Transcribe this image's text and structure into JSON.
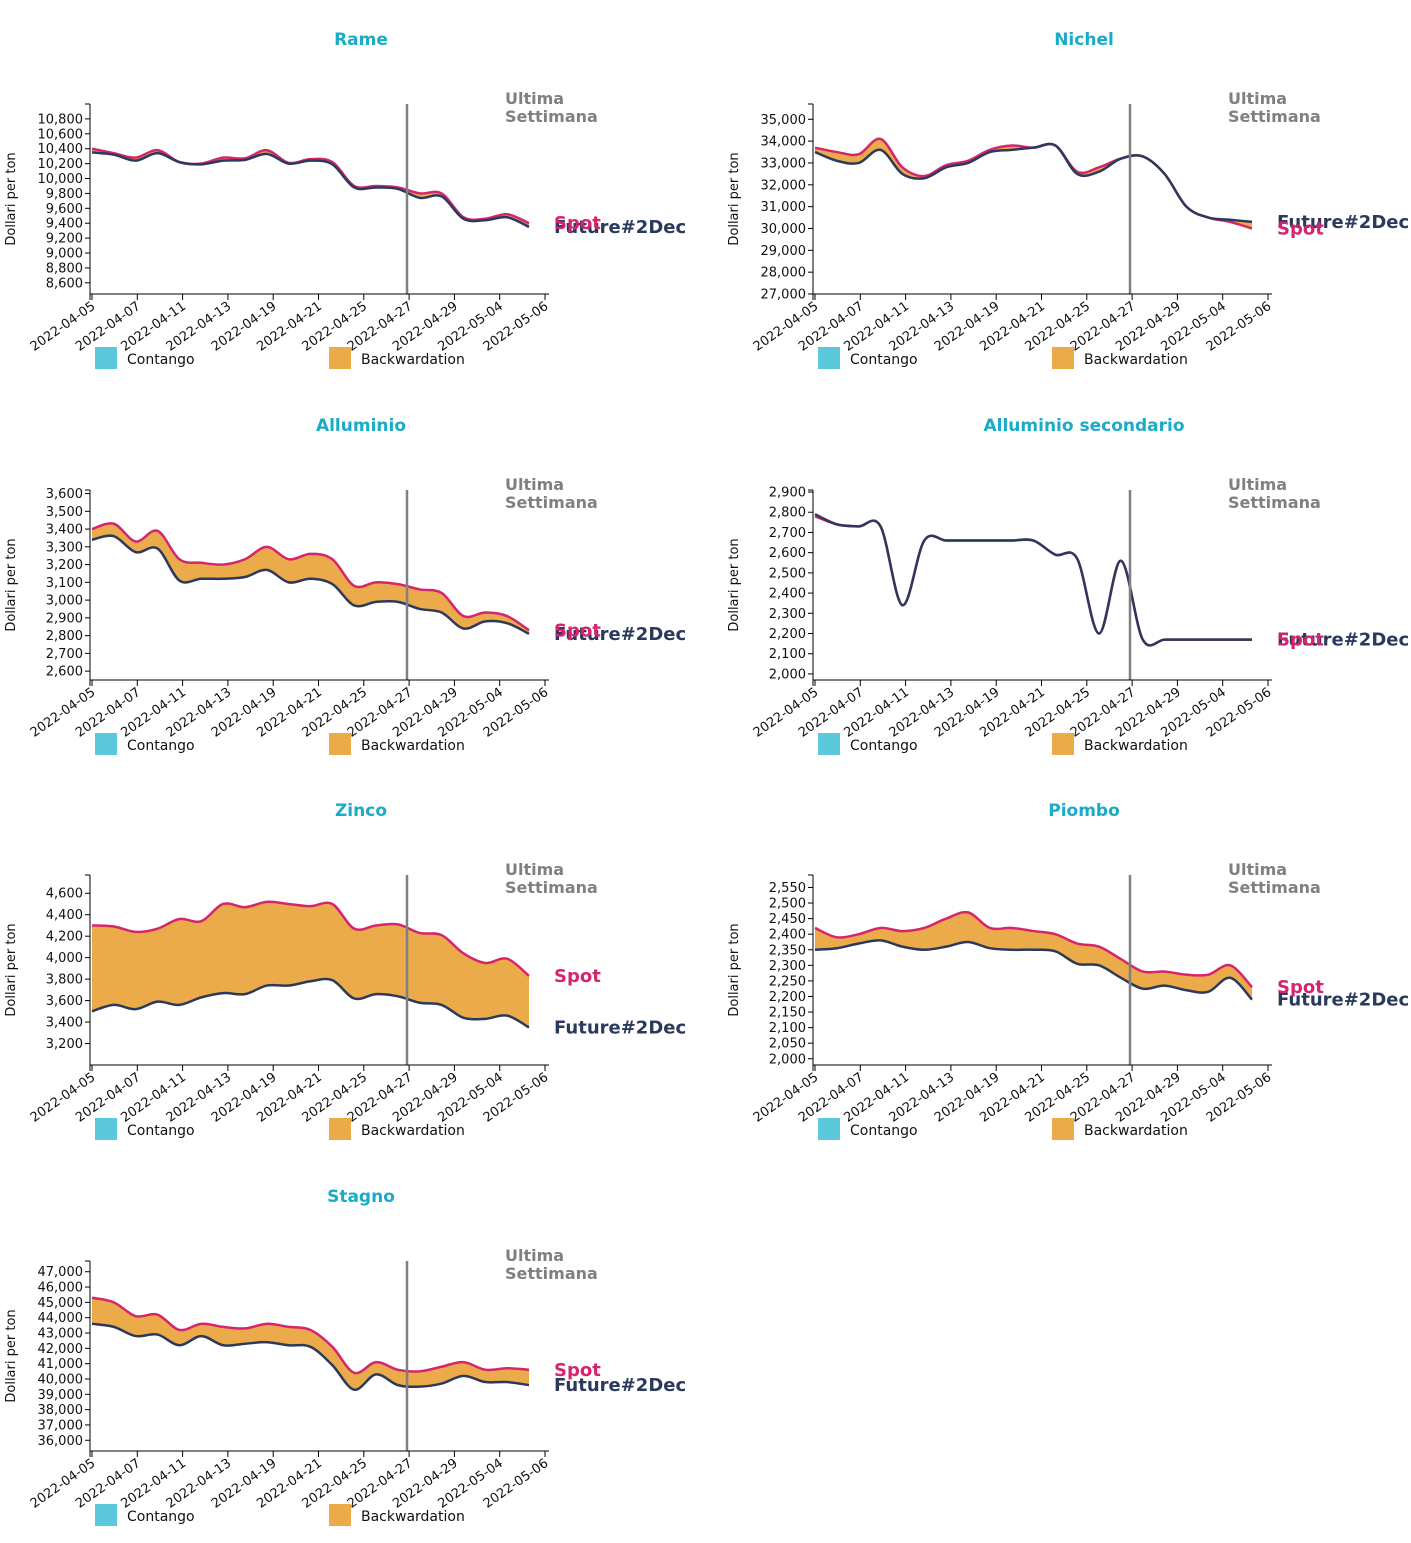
{
  "colors": {
    "title": "#1aabc7",
    "spot": "#d6246e",
    "future": "#2b3a5c",
    "contango": "#5bc8dc",
    "backwardation": "#ebab4a",
    "marker": "#808080"
  },
  "common": {
    "ylabel": "Dollari per ton",
    "annotation_line1": "Ultima",
    "annotation_line2": "Settimana",
    "marker_date": "2022-04-27",
    "spot_label": "Spot",
    "future_label": "Future#2Dec",
    "legend": [
      "Contango",
      "Backwardation"
    ],
    "x_ticks": [
      "2022-04-05",
      "2022-04-07",
      "2022-04-11",
      "2022-04-13",
      "2022-04-19",
      "2022-04-21",
      "2022-04-25",
      "2022-04-27",
      "2022-04-29",
      "2022-05-04",
      "2022-05-06"
    ]
  },
  "chart_data": [
    {
      "type": "area",
      "title": "Rame",
      "ylim": [
        8450,
        11000
      ],
      "y_ticks": [
        8600,
        8800,
        9000,
        9200,
        9400,
        9600,
        9800,
        10000,
        10200,
        10400,
        10600,
        10800
      ],
      "spot": [
        10400,
        10340,
        10280,
        10380,
        10220,
        10200,
        10280,
        10270,
        10380,
        10210,
        10260,
        10220,
        9900,
        9900,
        9880,
        9800,
        9800,
        9480,
        9460,
        9520,
        9400
      ],
      "future": [
        10350,
        10320,
        10240,
        10340,
        10220,
        10190,
        10240,
        10250,
        10330,
        10200,
        10240,
        10190,
        9880,
        9880,
        9860,
        9740,
        9760,
        9460,
        9440,
        9480,
        9350
      ]
    },
    {
      "type": "area",
      "title": "Nichel",
      "ylim": [
        27000,
        35700
      ],
      "y_ticks": [
        27000,
        28000,
        29000,
        30000,
        31000,
        32000,
        33000,
        34000,
        35000
      ],
      "spot": [
        33700,
        33500,
        33400,
        34100,
        32800,
        32400,
        32900,
        33100,
        33600,
        33800,
        33700,
        33800,
        32600,
        32800,
        33200,
        33300,
        32500,
        31000,
        30500,
        30300,
        30000
      ],
      "future": [
        33500,
        33100,
        33000,
        33600,
        32500,
        32300,
        32800,
        33000,
        33500,
        33600,
        33700,
        33800,
        32500,
        32600,
        33200,
        33300,
        32500,
        31000,
        30500,
        30400,
        30300
      ]
    },
    {
      "type": "area",
      "title": "Alluminio",
      "ylim": [
        2550,
        3620
      ],
      "y_ticks": [
        2600,
        2700,
        2800,
        2900,
        3000,
        3100,
        3200,
        3300,
        3400,
        3500,
        3600
      ],
      "spot": [
        3400,
        3430,
        3330,
        3390,
        3230,
        3210,
        3200,
        3230,
        3300,
        3230,
        3260,
        3230,
        3080,
        3100,
        3090,
        3060,
        3040,
        2910,
        2930,
        2910,
        2830
      ],
      "future": [
        3340,
        3360,
        3270,
        3290,
        3110,
        3120,
        3120,
        3130,
        3170,
        3100,
        3120,
        3090,
        2970,
        2990,
        2990,
        2950,
        2930,
        2840,
        2880,
        2870,
        2810
      ]
    },
    {
      "type": "area",
      "title": "Alluminio secondario",
      "ylim": [
        1970,
        2910
      ],
      "y_ticks": [
        2000,
        2100,
        2200,
        2300,
        2400,
        2500,
        2600,
        2700,
        2800,
        2900
      ],
      "spot": [
        2780,
        2740,
        2730,
        2730,
        2340,
        2660,
        2660,
        2660,
        2660,
        2660,
        2660,
        2590,
        2570,
        2200,
        2560,
        2170,
        2170,
        2170,
        2170,
        2170,
        2170
      ],
      "future": [
        2790,
        2740,
        2730,
        2730,
        2340,
        2660,
        2660,
        2660,
        2660,
        2660,
        2660,
        2590,
        2570,
        2200,
        2560,
        2170,
        2170,
        2170,
        2170,
        2170,
        2170
      ]
    },
    {
      "type": "area",
      "title": "Zinco",
      "ylim": [
        3000,
        4770
      ],
      "y_ticks": [
        3200,
        3400,
        3600,
        3800,
        4000,
        4200,
        4400,
        4600
      ],
      "spot": [
        4300,
        4290,
        4240,
        4270,
        4360,
        4340,
        4500,
        4470,
        4520,
        4500,
        4480,
        4500,
        4270,
        4300,
        4310,
        4230,
        4210,
        4040,
        3950,
        3990,
        3830
      ],
      "future": [
        3500,
        3560,
        3520,
        3590,
        3560,
        3630,
        3670,
        3660,
        3740,
        3740,
        3780,
        3790,
        3620,
        3660,
        3640,
        3580,
        3560,
        3440,
        3430,
        3460,
        3350
      ]
    },
    {
      "type": "area",
      "title": "Piombo",
      "ylim": [
        1980,
        2590
      ],
      "y_ticks": [
        2000,
        2050,
        2100,
        2150,
        2200,
        2250,
        2300,
        2350,
        2400,
        2450,
        2500,
        2550
      ],
      "spot": [
        2420,
        2390,
        2400,
        2420,
        2410,
        2420,
        2450,
        2470,
        2420,
        2420,
        2410,
        2400,
        2370,
        2360,
        2320,
        2280,
        2280,
        2270,
        2270,
        2300,
        2230
      ],
      "future": [
        2350,
        2355,
        2370,
        2380,
        2360,
        2350,
        2360,
        2375,
        2355,
        2350,
        2350,
        2345,
        2305,
        2300,
        2260,
        2225,
        2235,
        2220,
        2215,
        2260,
        2190
      ]
    },
    {
      "type": "area",
      "title": "Stagno",
      "ylim": [
        35300,
        47700
      ],
      "y_ticks": [
        36000,
        37000,
        38000,
        39000,
        40000,
        41000,
        42000,
        43000,
        44000,
        45000,
        46000,
        47000
      ],
      "spot": [
        45300,
        45000,
        44100,
        44200,
        43200,
        43600,
        43400,
        43300,
        43600,
        43400,
        43200,
        42100,
        40400,
        41100,
        40600,
        40500,
        40800,
        41100,
        40600,
        40700,
        40600
      ],
      "future": [
        43600,
        43400,
        42800,
        42900,
        42200,
        42800,
        42200,
        42300,
        42400,
        42200,
        42100,
        40900,
        39300,
        40300,
        39600,
        39500,
        39700,
        40200,
        39800,
        39800,
        39600
      ]
    }
  ]
}
